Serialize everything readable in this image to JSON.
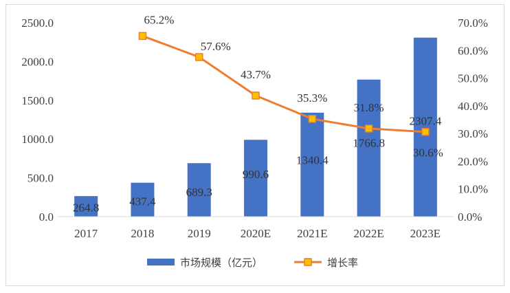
{
  "chart_data": {
    "type": "bar",
    "title": "",
    "xlabel": "",
    "ylabel": "",
    "categories": [
      "2017",
      "2018",
      "2019",
      "2020E",
      "2021E",
      "2022E",
      "2023E"
    ],
    "series": [
      {
        "name": "市场规模（亿元）",
        "type": "bar",
        "axis": "left",
        "color": "#4472c4",
        "values": [
          264.8,
          437.4,
          689.3,
          990.6,
          1340.4,
          1766.8,
          2307.4
        ],
        "labels": [
          "264.8",
          "437.4",
          "689.3",
          "990.6",
          "1340.4",
          "1766.8",
          "2307.4"
        ]
      },
      {
        "name": "增长率",
        "type": "line",
        "axis": "right",
        "color": "#ed7d31",
        "marker_fill": "#ffc000",
        "values": [
          null,
          65.2,
          57.6,
          43.7,
          35.3,
          31.8,
          30.6
        ],
        "labels": [
          "",
          "65.2%",
          "57.6%",
          "43.7%",
          "35.3%",
          "31.8%",
          "30.6%"
        ]
      }
    ],
    "ylim": [
      0,
      2500
    ],
    "y2lim": [
      0,
      70
    ],
    "yticks": [
      "0.0",
      "500.0",
      "1000.0",
      "1500.0",
      "2000.0",
      "2500.0"
    ],
    "y2ticks": [
      "0.0%",
      "10.0%",
      "20.0%",
      "30.0%",
      "40.0%",
      "50.0%",
      "60.0%",
      "70.0%"
    ],
    "grid": false,
    "legend": "bottom"
  }
}
